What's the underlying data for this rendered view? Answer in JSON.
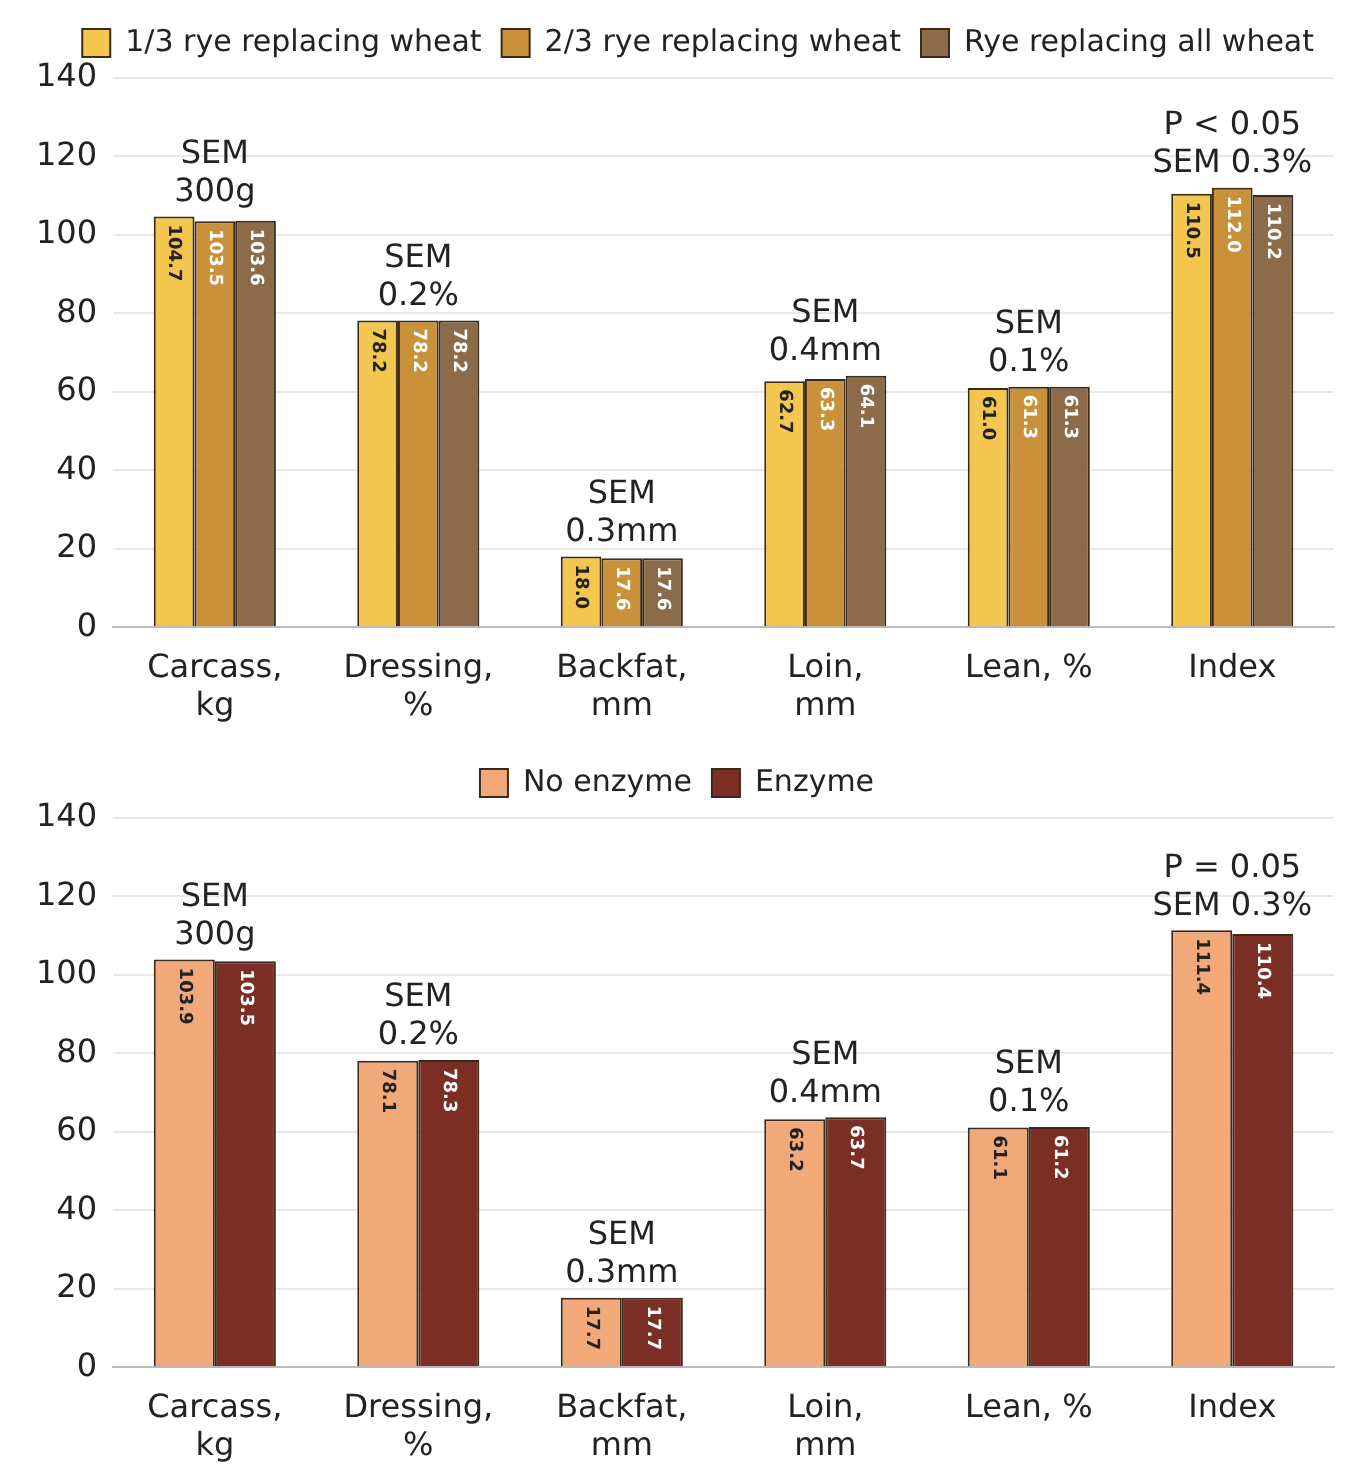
{
  "chart_data": [
    {
      "type": "bar",
      "categories": [
        "Carcass,\nkg",
        "Dressing,\n%",
        "Backfat,\nmm",
        "Loin,\nmm",
        "Lean, %",
        "Index"
      ],
      "series": [
        {
          "name": "1/3 rye replacing wheat",
          "color": "#f3c64f",
          "values": [
            104.7,
            78.2,
            18.0,
            62.7,
            61.0,
            110.5
          ],
          "value_labels": [
            "104.7",
            "78.2",
            "18.0",
            "62.7",
            "61.0",
            "110.5"
          ]
        },
        {
          "name": "2/3 rye replacing wheat",
          "color": "#c8913a",
          "values": [
            103.5,
            78.2,
            17.6,
            63.3,
            61.3,
            112.0
          ],
          "value_labels": [
            "103.5",
            "78.2",
            "17.6",
            "63.3",
            "61.3",
            "112.0"
          ]
        },
        {
          "name": "Rye replacing all wheat",
          "color": "#8b6b4a",
          "values": [
            103.6,
            78.2,
            17.6,
            64.1,
            61.3,
            110.2
          ],
          "value_labels": [
            "103.6",
            "78.2",
            "17.6",
            "64.1",
            "61.3",
            "110.2"
          ]
        }
      ],
      "ylim": [
        0,
        140
      ],
      "yticks": [
        0,
        20,
        40,
        60,
        80,
        100,
        120,
        140
      ],
      "grid": "y",
      "legend": "top right",
      "annotations": [
        {
          "text": "SEM\n300g",
          "x": "Carcass,\nkg",
          "y": 104.7
        },
        {
          "text": "SEM\n0.2%",
          "x": "Dressing,\n%",
          "y": 78.2
        },
        {
          "text": "SEM\n0.3mm",
          "x": "Backfat,\nmm",
          "y": 18.0
        },
        {
          "text": "SEM\n0.4mm",
          "x": "Loin,\nmm",
          "y": 64.1
        },
        {
          "text": "SEM\n0.1%",
          "x": "Lean, %",
          "y": 61.3
        },
        {
          "text": "P < 0.05\nSEM 0.3%",
          "x": "Index",
          "y": 112.0
        }
      ]
    },
    {
      "type": "bar",
      "categories": [
        "Carcass,\nkg",
        "Dressing,\n%",
        "Backfat,\nmm",
        "Loin,\nmm",
        "Lean, %",
        "Index"
      ],
      "series": [
        {
          "name": "No enzyme",
          "color": "#f2a97a",
          "values": [
            103.9,
            78.1,
            17.7,
            63.2,
            61.1,
            111.4
          ],
          "value_labels": [
            "103.9",
            "78.1",
            "17.7",
            "63.2",
            "61.1",
            "111.4"
          ]
        },
        {
          "name": "Enzyme",
          "color": "#7b2f24",
          "values": [
            103.5,
            78.3,
            17.7,
            63.7,
            61.2,
            110.4
          ],
          "value_labels": [
            "103.5",
            "78.3",
            "17.7",
            "63.7",
            "61.2",
            "110.4"
          ]
        }
      ],
      "ylim": [
        0,
        140
      ],
      "yticks": [
        0,
        20,
        40,
        60,
        80,
        100,
        120,
        140
      ],
      "grid": "y",
      "legend": "top",
      "annotations": [
        {
          "text": "SEM\n300g",
          "x": "Carcass,\nkg",
          "y": 103.9
        },
        {
          "text": "SEM\n0.2%",
          "x": "Dressing,\n%",
          "y": 78.3
        },
        {
          "text": "SEM\n0.3mm",
          "x": "Backfat,\nmm",
          "y": 17.7
        },
        {
          "text": "SEM\n0.4mm",
          "x": "Loin,\nmm",
          "y": 63.7
        },
        {
          "text": "SEM\n0.1%",
          "x": "Lean, %",
          "y": 61.2
        },
        {
          "text": "P = 0.05\nSEM 0.3%",
          "x": "Index",
          "y": 111.4
        }
      ]
    }
  ]
}
